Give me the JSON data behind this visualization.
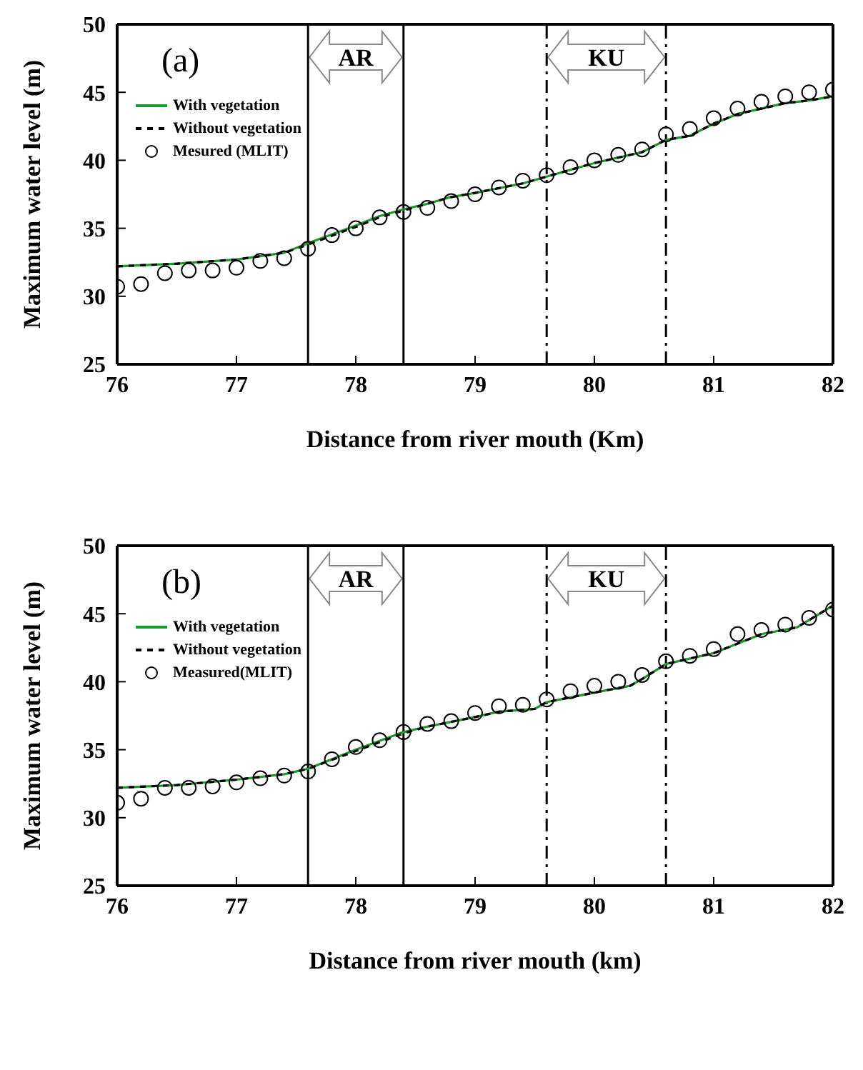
{
  "chart_data": [
    {
      "type": "line",
      "annotations": [
        "(a)",
        "AR",
        "KU"
      ],
      "xlabel": "Distance from river mouth (Km)",
      "ylabel": "Maximum water level (m)",
      "xlim": [
        76,
        82
      ],
      "xticks": [
        76,
        77,
        78,
        79,
        80,
        81,
        82
      ],
      "ylim": [
        25,
        50
      ],
      "yticks": [
        25,
        30,
        35,
        40,
        45,
        50
      ],
      "grid": false,
      "legend": "top left",
      "ref_lines": [
        {
          "axis": "x",
          "value": 77.6,
          "line_style": "solid"
        },
        {
          "axis": "x",
          "value": 78.4,
          "line_style": "solid"
        },
        {
          "axis": "x",
          "value": 79.6,
          "line_style": "dashdot"
        },
        {
          "axis": "x",
          "value": 80.6,
          "line_style": "dashdot"
        }
      ],
      "series": [
        {
          "name": "With vegetation",
          "color": "#1a9a2a",
          "line_style": "solid",
          "marker": "none",
          "x": [
            76,
            76.5,
            77,
            77.4,
            77.6,
            78,
            78.2,
            78.4,
            78.6,
            78.8,
            79,
            79.4,
            79.6,
            80,
            80.4,
            80.6,
            80.8,
            81,
            81.2,
            81.6,
            81.8,
            82
          ],
          "values": [
            32.2,
            32.4,
            32.7,
            33.2,
            33.9,
            35.2,
            35.9,
            36.4,
            36.8,
            37.3,
            37.6,
            38.3,
            38.8,
            39.8,
            40.6,
            41.5,
            41.8,
            42.7,
            43.4,
            44.2,
            44.4,
            44.7
          ]
        },
        {
          "name": "Without vegetation",
          "color": "#000000",
          "line_style": "dashed",
          "marker": "none",
          "x": [
            76,
            76.5,
            77,
            77.4,
            77.6,
            78,
            78.2,
            78.4,
            78.6,
            78.8,
            79,
            79.4,
            79.6,
            80,
            80.4,
            80.6,
            80.8,
            81,
            81.2,
            81.6,
            81.8,
            82
          ],
          "values": [
            32.2,
            32.4,
            32.7,
            33.2,
            33.8,
            35.1,
            35.8,
            36.3,
            36.8,
            37.3,
            37.6,
            38.3,
            38.8,
            39.8,
            40.6,
            41.5,
            41.8,
            42.7,
            43.4,
            44.2,
            44.4,
            44.7
          ]
        },
        {
          "name": "Mesured (MLIT)",
          "type": "scatter",
          "color": "#000000",
          "marker": "circle",
          "x": [
            76,
            76.2,
            76.4,
            76.6,
            76.8,
            77,
            77.2,
            77.4,
            77.6,
            77.8,
            78,
            78.2,
            78.4,
            78.6,
            78.8,
            79,
            79.2,
            79.4,
            79.6,
            79.8,
            80,
            80.2,
            80.4,
            80.6,
            80.8,
            81,
            81.2,
            81.4,
            81.6,
            81.8,
            82
          ],
          "values": [
            30.7,
            30.9,
            31.7,
            31.9,
            31.9,
            32.1,
            32.6,
            32.8,
            33.5,
            34.5,
            35,
            35.8,
            36.2,
            36.5,
            37,
            37.5,
            38,
            38.5,
            38.9,
            39.5,
            40,
            40.4,
            40.8,
            41.9,
            42.3,
            43.1,
            43.8,
            44.3,
            44.7,
            45,
            45.2
          ]
        }
      ]
    },
    {
      "type": "line",
      "annotations": [
        "(b)",
        "AR",
        "KU"
      ],
      "xlabel": "Distance from river mouth (km)",
      "ylabel": "Maximum water level (m)",
      "xlim": [
        76,
        82
      ],
      "xticks": [
        76,
        77,
        78,
        79,
        80,
        81,
        82
      ],
      "ylim": [
        25,
        50
      ],
      "yticks": [
        25,
        30,
        35,
        40,
        45,
        50
      ],
      "grid": false,
      "legend": "top left",
      "ref_lines": [
        {
          "axis": "x",
          "value": 77.6,
          "line_style": "solid"
        },
        {
          "axis": "x",
          "value": 78.4,
          "line_style": "solid"
        },
        {
          "axis": "x",
          "value": 79.6,
          "line_style": "dashdot"
        },
        {
          "axis": "x",
          "value": 80.6,
          "line_style": "dashdot"
        }
      ],
      "series": [
        {
          "name": "With vegetation",
          "color": "#1a9a2a",
          "line_style": "solid",
          "marker": "none",
          "x": [
            76,
            76.5,
            77,
            77.4,
            77.6,
            78,
            78.4,
            78.6,
            79,
            79.2,
            79.5,
            79.6,
            80,
            80.3,
            80.4,
            80.6,
            81,
            81.2,
            81.4,
            81.7,
            82
          ],
          "values": [
            32.2,
            32.4,
            32.8,
            33.2,
            33.6,
            35,
            36.3,
            36.7,
            37.4,
            37.8,
            38,
            38.5,
            39.2,
            39.7,
            40.2,
            41.3,
            42.1,
            42.8,
            43.5,
            44,
            45.6
          ]
        },
        {
          "name": "Without vegetation",
          "color": "#000000",
          "line_style": "dashed",
          "marker": "none",
          "x": [
            76,
            76.5,
            77,
            77.4,
            77.6,
            78,
            78.4,
            78.6,
            79,
            79.2,
            79.5,
            79.6,
            80,
            80.3,
            80.4,
            80.6,
            81,
            81.2,
            81.4,
            81.7,
            82
          ],
          "values": [
            32.2,
            32.4,
            32.8,
            33.2,
            33.6,
            34.9,
            36.2,
            36.7,
            37.4,
            37.8,
            38,
            38.5,
            39.2,
            39.7,
            40.2,
            41.3,
            42.1,
            42.8,
            43.5,
            44,
            45.6
          ]
        },
        {
          "name": "Measured(MLIT)",
          "type": "scatter",
          "color": "#000000",
          "marker": "circle",
          "x": [
            76,
            76.2,
            76.4,
            76.6,
            76.8,
            77,
            77.2,
            77.4,
            77.6,
            77.8,
            78,
            78.2,
            78.4,
            78.6,
            78.8,
            79,
            79.2,
            79.4,
            79.6,
            79.8,
            80,
            80.2,
            80.4,
            80.6,
            80.8,
            81,
            81.2,
            81.4,
            81.6,
            81.8,
            82
          ],
          "values": [
            31.1,
            31.4,
            32.2,
            32.2,
            32.3,
            32.6,
            32.9,
            33.1,
            33.4,
            34.3,
            35.2,
            35.7,
            36.3,
            36.9,
            37.1,
            37.7,
            38.2,
            38.3,
            38.7,
            39.3,
            39.7,
            40,
            40.5,
            41.5,
            41.9,
            42.4,
            43.5,
            43.8,
            44.2,
            44.7,
            45.3
          ]
        }
      ]
    }
  ]
}
